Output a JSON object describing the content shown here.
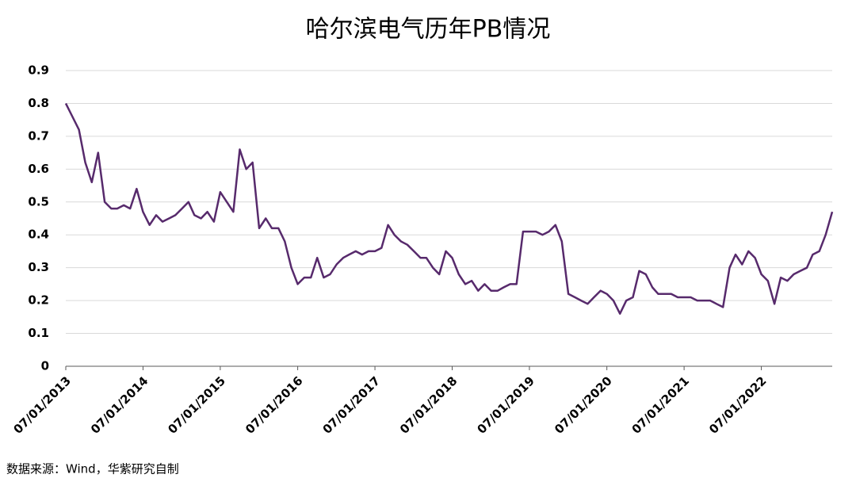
{
  "chart_data": {
    "type": "line",
    "title": "哈尔滨电气历年PB情况",
    "source": "数据来源：Wind，华紫研究自制",
    "x": [
      "07/01/2013",
      "08/01/2013",
      "09/01/2013",
      "10/01/2013",
      "11/01/2013",
      "12/01/2013",
      "01/01/2014",
      "02/01/2014",
      "03/01/2014",
      "04/01/2014",
      "05/01/2014",
      "06/01/2014",
      "07/01/2014",
      "08/01/2014",
      "09/01/2014",
      "10/01/2014",
      "11/01/2014",
      "12/01/2014",
      "01/01/2015",
      "02/01/2015",
      "03/01/2015",
      "04/01/2015",
      "05/01/2015",
      "06/01/2015",
      "07/01/2015",
      "08/01/2015",
      "09/01/2015",
      "10/01/2015",
      "11/01/2015",
      "12/01/2015",
      "01/01/2016",
      "02/01/2016",
      "03/01/2016",
      "04/01/2016",
      "05/01/2016",
      "06/01/2016",
      "07/01/2016",
      "08/01/2016",
      "09/01/2016",
      "10/01/2016",
      "11/01/2016",
      "12/01/2016",
      "01/01/2017",
      "02/01/2017",
      "03/01/2017",
      "04/01/2017",
      "05/01/2017",
      "06/01/2017",
      "07/01/2017",
      "08/01/2017",
      "09/01/2017",
      "10/01/2017",
      "11/01/2017",
      "12/01/2017",
      "01/01/2018",
      "02/01/2018",
      "03/01/2018",
      "04/01/2018",
      "05/01/2018",
      "06/01/2018",
      "07/01/2018",
      "08/01/2018",
      "09/01/2018",
      "10/01/2018",
      "11/01/2018",
      "12/01/2018",
      "01/01/2019",
      "02/01/2019",
      "03/01/2019",
      "04/01/2019",
      "05/01/2019",
      "06/01/2019",
      "07/01/2019",
      "08/01/2019",
      "09/01/2019",
      "10/01/2019",
      "11/01/2019",
      "12/01/2019",
      "01/01/2020",
      "02/01/2020",
      "03/01/2020",
      "04/01/2020",
      "05/01/2020",
      "06/01/2020",
      "07/01/2020",
      "08/01/2020",
      "09/01/2020",
      "10/01/2020",
      "11/01/2020",
      "12/01/2020",
      "01/01/2021",
      "02/01/2021",
      "03/01/2021",
      "04/01/2021",
      "05/01/2021",
      "06/01/2021",
      "07/01/2021",
      "08/01/2021",
      "09/01/2021",
      "10/01/2021",
      "11/01/2021",
      "12/01/2021",
      "01/01/2022",
      "02/01/2022",
      "03/01/2022",
      "04/01/2022",
      "05/01/2022",
      "06/01/2022",
      "07/01/2022",
      "08/01/2022",
      "09/01/2022",
      "10/01/2022",
      "11/01/2022",
      "12/01/2022",
      "01/01/2023",
      "02/01/2023",
      "03/01/2023",
      "04/01/2023",
      "05/01/2023",
      "06/01/2023"
    ],
    "series": [
      {
        "name": "PB",
        "color": "#572a6c",
        "values": [
          0.8,
          0.76,
          0.72,
          0.62,
          0.56,
          0.65,
          0.5,
          0.48,
          0.48,
          0.49,
          0.48,
          0.54,
          0.47,
          0.43,
          0.46,
          0.44,
          0.45,
          0.46,
          0.48,
          0.5,
          0.46,
          0.45,
          0.47,
          0.44,
          0.53,
          0.5,
          0.47,
          0.66,
          0.6,
          0.62,
          0.42,
          0.45,
          0.42,
          0.42,
          0.38,
          0.3,
          0.25,
          0.27,
          0.27,
          0.33,
          0.27,
          0.28,
          0.31,
          0.33,
          0.34,
          0.35,
          0.34,
          0.35,
          0.35,
          0.36,
          0.43,
          0.4,
          0.38,
          0.37,
          0.35,
          0.33,
          0.33,
          0.3,
          0.28,
          0.35,
          0.33,
          0.28,
          0.25,
          0.26,
          0.23,
          0.25,
          0.23,
          0.23,
          0.24,
          0.25,
          0.25,
          0.41,
          0.41,
          0.41,
          0.4,
          0.41,
          0.43,
          0.38,
          0.22,
          0.21,
          0.2,
          0.19,
          0.21,
          0.23,
          0.22,
          0.2,
          0.16,
          0.2,
          0.21,
          0.29,
          0.28,
          0.24,
          0.22,
          0.22,
          0.22,
          0.21,
          0.21,
          0.21,
          0.2,
          0.2,
          0.2,
          0.19,
          0.18,
          0.3,
          0.34,
          0.31,
          0.35,
          0.33,
          0.28,
          0.26,
          0.19,
          0.27,
          0.26,
          0.28,
          0.29,
          0.3,
          0.34,
          0.35,
          0.4,
          0.47
        ]
      }
    ],
    "xlim": [
      "07/01/2013",
      "06/01/2023"
    ],
    "xticks": [
      "07/01/2013",
      "07/01/2014",
      "07/01/2015",
      "07/01/2016",
      "07/01/2017",
      "07/01/2018",
      "07/01/2019",
      "07/01/2020",
      "07/01/2021",
      "07/01/2022"
    ],
    "ylim": [
      0,
      0.9
    ],
    "yticks": [
      0,
      0.1,
      0.2,
      0.3,
      0.4,
      0.5,
      0.6,
      0.7,
      0.8,
      0.9
    ],
    "grid": true
  }
}
